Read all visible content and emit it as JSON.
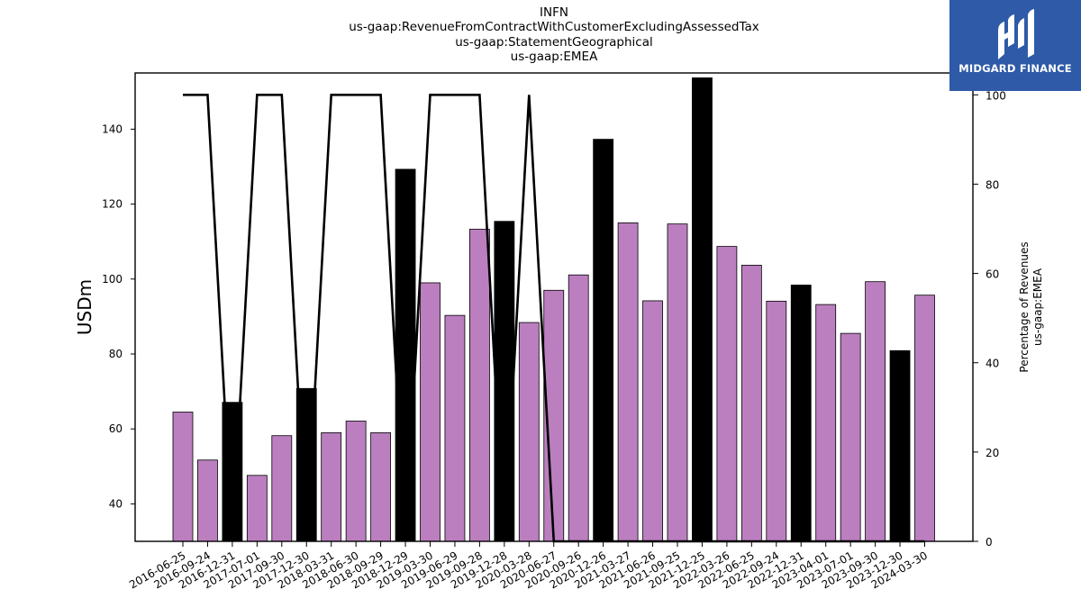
{
  "title_lines": [
    "INFN",
    "us-gaap:RevenueFromContractWithCustomerExcludingAssessedTax",
    "us-gaap:StatementGeographical",
    "us-gaap:EMEA"
  ],
  "logo": {
    "text": "MIDGARD FINANCE",
    "background": "#2e5aa8"
  },
  "chart_data": {
    "type": "bar",
    "ylabel": "USDm",
    "y2label_lines": [
      "Percentage of Revenues",
      "us-gaap:EMEA"
    ],
    "ylim": [
      30,
      155
    ],
    "y2lim": [
      0,
      104.9
    ],
    "yticks": [
      40,
      60,
      80,
      100,
      120,
      140
    ],
    "y2ticks": [
      0,
      20,
      40,
      60,
      80,
      100
    ],
    "colors": {
      "normal": "#bb7fbf",
      "highlight": "#000000",
      "line": "#000000"
    },
    "categories": [
      "2016-06-25",
      "2016-09-24",
      "2016-12-31",
      "2017-07-01",
      "2017-09-30",
      "2017-12-30",
      "2018-03-31",
      "2018-06-30",
      "2018-09-29",
      "2018-12-29",
      "2019-03-30",
      "2019-06-29",
      "2019-09-28",
      "2019-12-28",
      "2020-03-28",
      "2020-06-27",
      "2020-09-26",
      "2020-12-26",
      "2021-03-27",
      "2021-06-26",
      "2021-09-25",
      "2021-12-25",
      "2022-03-26",
      "2022-06-25",
      "2022-09-24",
      "2022-12-31",
      "2023-04-01",
      "2023-07-01",
      "2023-09-30",
      "2023-12-30",
      "2024-03-30"
    ],
    "values": [
      64.5,
      51.7,
      67.1,
      47.6,
      58.2,
      70.8,
      59.0,
      62.1,
      59.0,
      129.3,
      99.0,
      90.3,
      113.3,
      115.4,
      88.4,
      97.0,
      101.1,
      137.3,
      115.0,
      94.2,
      114.7,
      153.7,
      108.7,
      103.7,
      94.1,
      98.4,
      93.2,
      85.5,
      99.3,
      80.9,
      95.7
    ],
    "highlighted": [
      false,
      false,
      true,
      false,
      false,
      true,
      false,
      false,
      false,
      true,
      false,
      false,
      false,
      true,
      false,
      false,
      false,
      true,
      false,
      false,
      false,
      true,
      false,
      false,
      false,
      true,
      false,
      false,
      false,
      true,
      false
    ],
    "percentages": [
      100,
      100,
      0,
      100,
      100,
      0,
      100,
      100,
      100,
      0,
      100,
      100,
      100,
      0,
      100,
      0,
      0,
      0,
      0,
      0,
      0,
      0,
      0,
      0,
      0,
      0,
      0,
      0,
      0,
      0,
      0
    ]
  }
}
